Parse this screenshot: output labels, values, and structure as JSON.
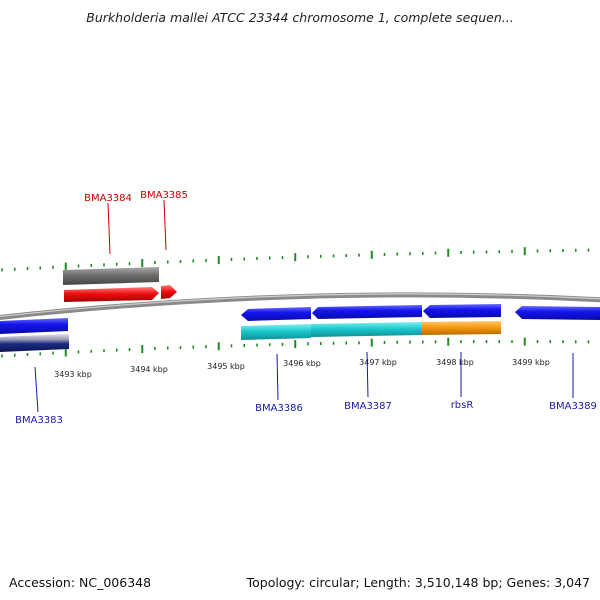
{
  "title": "Burkholderia mallei ATCC 23344 chromosome 1, complete sequen...",
  "footer": {
    "accession": "Accession: NC_006348",
    "summary": "Topology: circular; Length: 3,510,148 bp; Genes: 3,047"
  },
  "colors": {
    "backbone": "#8a8a8a",
    "tick": "#1f8a1f",
    "label_forward": "#cc0000",
    "label_reverse": "#1a1aa0",
    "gene_blue": "#1010ee",
    "gene_cyan": "#1cc8cc",
    "gene_orange": "#f79a10",
    "gene_red": "#ee1010",
    "gene_grey": "#707070",
    "gene_navy": "#1a2a80"
  },
  "scale": {
    "unit": "kbp",
    "labels": [
      "3493 kbp",
      "3494 kbp",
      "3495 kbp",
      "3496 kbp",
      "3497 kbp",
      "3498 kbp",
      "3499 kbp"
    ]
  },
  "genes": [
    {
      "name": "BMA3383",
      "strand": "reverse",
      "color": "gene_blue"
    },
    {
      "name": "BMA3384",
      "strand": "forward",
      "color": "gene_grey"
    },
    {
      "name": "BMA3385",
      "strand": "forward",
      "color": "gene_red"
    },
    {
      "name": "BMA3386",
      "strand": "reverse",
      "color": "gene_blue"
    },
    {
      "name": "BMA3387",
      "strand": "reverse",
      "color": "gene_blue"
    },
    {
      "name": "rbsR",
      "strand": "reverse",
      "color": "gene_blue"
    },
    {
      "name": "BMA3389",
      "strand": "reverse",
      "color": "gene_blue"
    }
  ]
}
